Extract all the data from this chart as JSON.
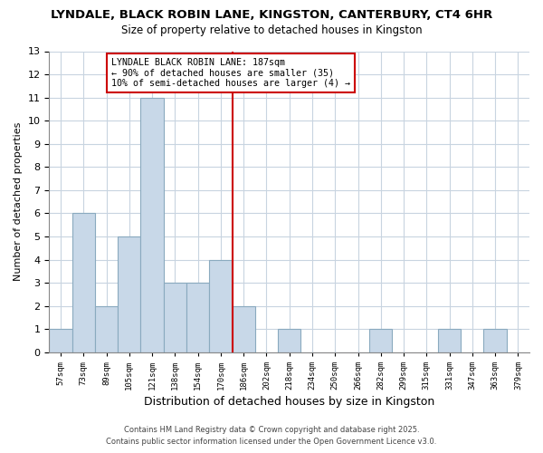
{
  "title": "LYNDALE, BLACK ROBIN LANE, KINGSTON, CANTERBURY, CT4 6HR",
  "subtitle": "Size of property relative to detached houses in Kingston",
  "xlabel": "Distribution of detached houses by size in Kingston",
  "ylabel": "Number of detached properties",
  "bin_labels": [
    "57sqm",
    "73sqm",
    "89sqm",
    "105sqm",
    "121sqm",
    "138sqm",
    "154sqm",
    "170sqm",
    "186sqm",
    "202sqm",
    "218sqm",
    "234sqm",
    "250sqm",
    "266sqm",
    "282sqm",
    "299sqm",
    "315sqm",
    "331sqm",
    "347sqm",
    "363sqm",
    "379sqm"
  ],
  "bar_values": [
    1,
    6,
    2,
    5,
    11,
    3,
    3,
    4,
    2,
    0,
    1,
    0,
    0,
    0,
    1,
    0,
    0,
    1,
    0,
    1,
    0
  ],
  "bar_color": "#c8d8e8",
  "bar_edge_color": "#8aaabf",
  "vline_color": "#cc0000",
  "annotation_line1": "LYNDALE BLACK ROBIN LANE: 187sqm",
  "annotation_line2": "← 90% of detached houses are smaller (35)",
  "annotation_line3": "10% of semi-detached houses are larger (4) →",
  "annotation_box_color": "#ffffff",
  "annotation_box_edge": "#cc0000",
  "footer_line1": "Contains HM Land Registry data © Crown copyright and database right 2025.",
  "footer_line2": "Contains public sector information licensed under the Open Government Licence v3.0.",
  "ylim": [
    0,
    13
  ],
  "yticks": [
    0,
    1,
    2,
    3,
    4,
    5,
    6,
    7,
    8,
    9,
    10,
    11,
    12,
    13
  ],
  "background_color": "#ffffff",
  "grid_color": "#c8d4e0",
  "fig_width": 6.0,
  "fig_height": 5.0,
  "dpi": 100
}
